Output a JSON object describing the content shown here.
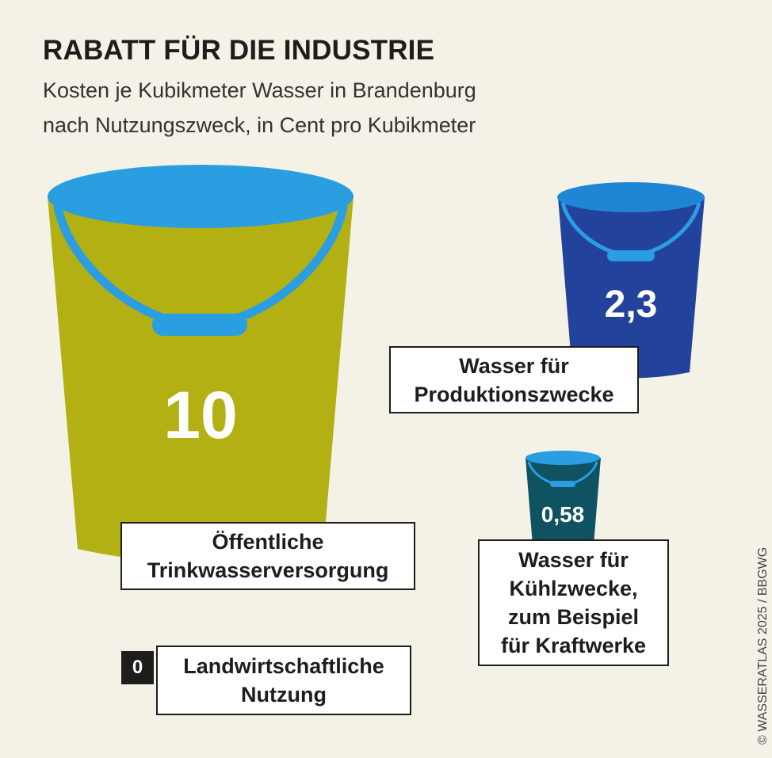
{
  "title": "RABATT FÜR DIE INDUSTRIE",
  "subtitle": [
    "Kosten je Kubikmeter Wasser in Brandenburg",
    "nach Nutzungszweck, in Cent pro Kubikmeter"
  ],
  "credit": "© WASSERATLAS 2025 / BBGWG",
  "chart_data": {
    "type": "bar",
    "title": "RABATT FÜR DIE INDUSTRIE",
    "unit": "Cent pro Kubikmeter",
    "categories": [
      "Öffentliche Trinkwasserversorgung",
      "Wasser für Produktionszwecke",
      "Wasser für Kühlzwecke, zum Beispiel für Kraftwerke",
      "Landwirtschaftliche Nutzung"
    ],
    "values": [
      10,
      2.3,
      0.58,
      0
    ],
    "value_labels": [
      "10",
      "2,3",
      "0,58",
      "0"
    ],
    "colors": {
      "trinkwasser_body": "#b3b014",
      "produktion_body": "#23429c",
      "kuehlung_body": "#0f5363",
      "water_light": "#2a9ee0",
      "water_mid": "#1f86d6",
      "handle": "#2a9ee0",
      "label_text": "#ffffff"
    }
  },
  "labels": {
    "trinkwasser": [
      "Öffentliche",
      "Trinkwasserversorgung"
    ],
    "produktion": [
      "Wasser für",
      "Produktionszwecke"
    ],
    "kuehlung": [
      "Wasser für",
      "Kühlzwecke,",
      "zum Beispiel",
      "für Kraftwerke"
    ],
    "landwirtschaft": [
      "Landwirtschaftliche",
      "Nutzung"
    ]
  }
}
